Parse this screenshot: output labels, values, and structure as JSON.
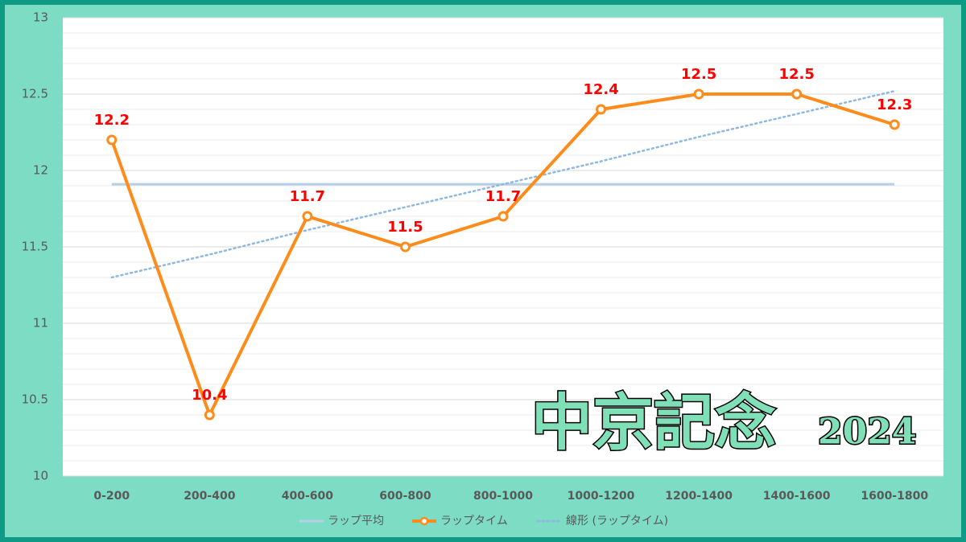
{
  "chart_data": {
    "type": "line",
    "categories": [
      "0-200",
      "200-400",
      "400-600",
      "600-800",
      "800-1000",
      "1000-1200",
      "1200-1400",
      "1400-1600",
      "1600-1800"
    ],
    "series": [
      {
        "name": "ラップ平均",
        "color": "#b4cfe6",
        "style": "solid",
        "values": [
          11.91,
          11.91,
          11.91,
          11.91,
          11.91,
          11.91,
          11.91,
          11.91,
          11.91
        ]
      },
      {
        "name": "ラップタイム",
        "color": "#ff8c1a",
        "style": "marker",
        "values": [
          12.2,
          10.4,
          11.7,
          11.5,
          11.7,
          12.4,
          12.5,
          12.5,
          12.3
        ],
        "label_color": "#ff0000"
      },
      {
        "name": "線形 (ラップタイム)",
        "color": "#8fb8e0",
        "style": "dotted",
        "values": [
          11.3,
          11.45,
          11.61,
          11.76,
          11.91,
          12.06,
          12.22,
          12.37,
          12.52
        ]
      }
    ],
    "ylim": [
      10,
      13
    ],
    "yticks": [
      10,
      10.5,
      11,
      11.5,
      12,
      12.5,
      13
    ],
    "yminorticks": [
      10.1,
      10.2,
      10.3,
      10.4,
      10.6,
      10.7,
      10.8,
      10.9,
      11.1,
      11.2,
      11.3,
      11.4,
      11.6,
      11.7,
      11.8,
      11.9,
      12.1,
      12.2,
      12.3,
      12.4,
      12.6,
      12.7,
      12.8,
      12.9
    ],
    "grid": true,
    "legend": "bottom",
    "annotations": [
      "中京記念",
      "2024"
    ]
  }
}
